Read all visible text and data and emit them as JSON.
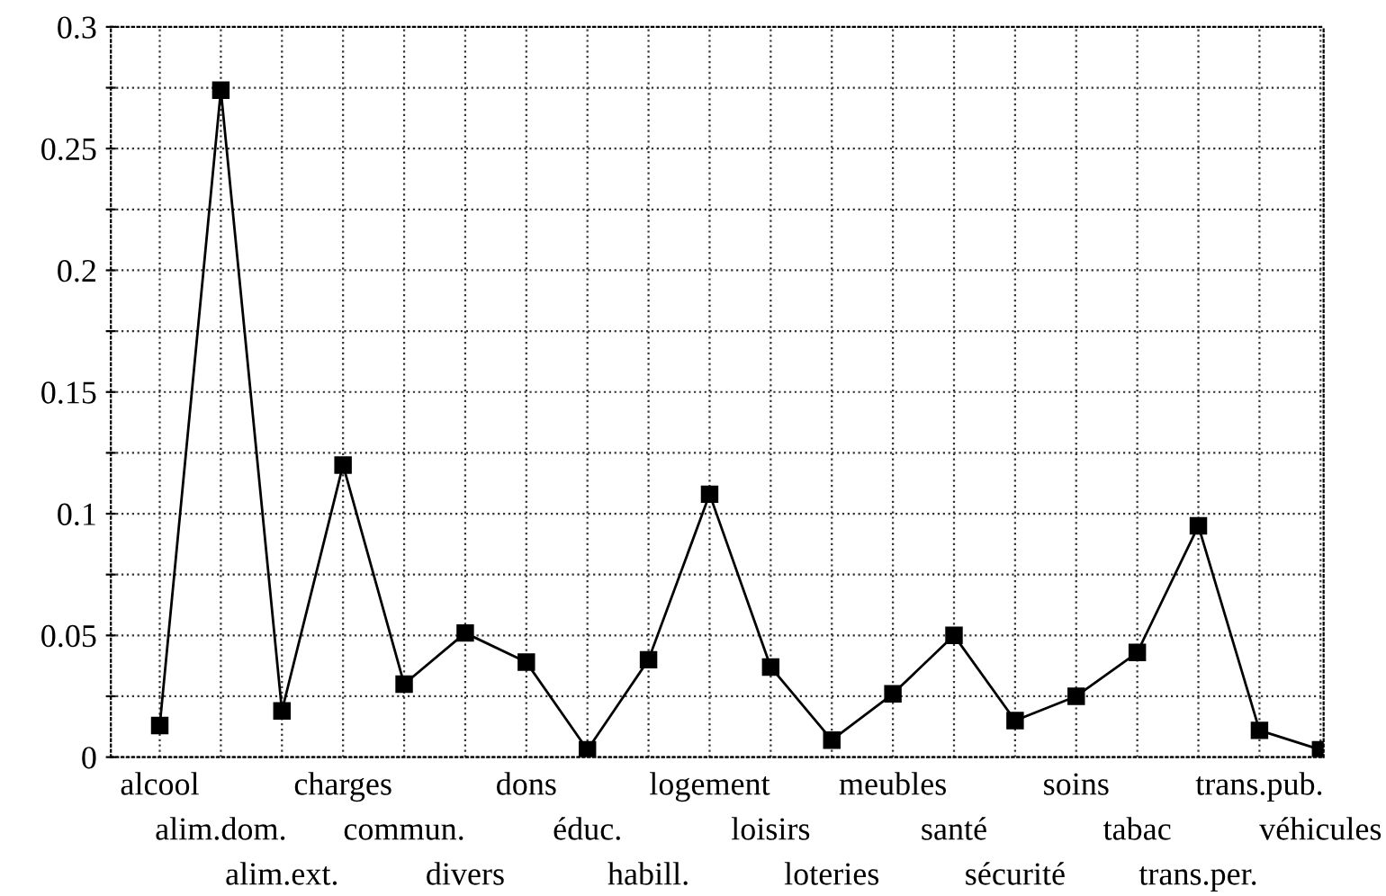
{
  "chart_data": {
    "type": "line",
    "categories": [
      "alcool",
      "alim.dom.",
      "alim.ext.",
      "charges",
      "commun.",
      "divers",
      "dons",
      "éduc.",
      "habill.",
      "logement",
      "loisirs",
      "loteries",
      "meubles",
      "santé",
      "sécurité",
      "soins",
      "tabac",
      "trans.per.",
      "trans.pub.",
      "véhicules"
    ],
    "series": [
      {
        "color": "#000000",
        "values": [
          0.013,
          0.274,
          0.019,
          0.12,
          0.03,
          0.051,
          0.039,
          0.003,
          0.04,
          0.108,
          0.037,
          0.007,
          0.026,
          0.05,
          0.015,
          0.025,
          0.043,
          0.095,
          0.011,
          0.003
        ]
      }
    ],
    "ylim": [
      0,
      0.3
    ],
    "yticks": [
      0,
      {
        "value": 0.025,
        "label": null
      },
      0.05,
      {
        "value": 0.075,
        "label": null
      },
      0.1,
      {
        "value": 0.125,
        "label": null
      },
      0.15,
      {
        "value": 0.175,
        "label": null
      },
      0.2,
      {
        "value": 0.225,
        "label": null
      },
      0.25,
      {
        "value": 0.275,
        "label": null
      },
      0.3
    ],
    "grid": true,
    "marker": "square",
    "line_style": "solid",
    "legend": false
  }
}
